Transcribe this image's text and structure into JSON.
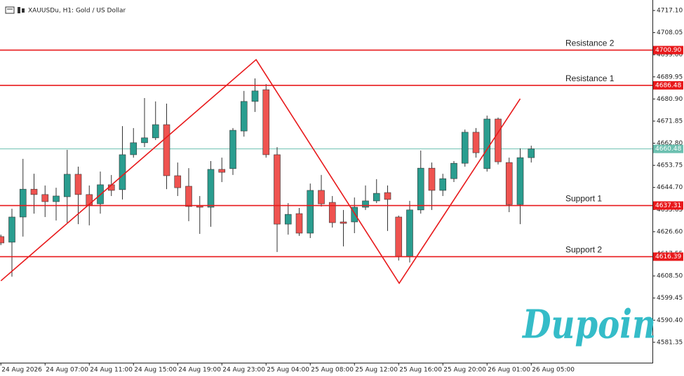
{
  "header": {
    "symbol": "XAUUSDu, H1:  Gold / US Dollar"
  },
  "chart_data": {
    "type": "candlestick",
    "categories": [
      "24 Aug 2026",
      null,
      null,
      null,
      "24 Aug 07:00",
      null,
      null,
      null,
      "24 Aug 11:00",
      null,
      null,
      null,
      "24 Aug 15:00",
      null,
      null,
      null,
      "24 Aug 19:00",
      null,
      null,
      null,
      "24 Aug 23:00",
      null,
      null,
      null,
      "25 Aug 04:00",
      null,
      null,
      null,
      "25 Aug 08:00",
      null,
      null,
      null,
      "25 Aug 12:00",
      null,
      null,
      null,
      "25 Aug 16:00",
      null,
      null,
      null,
      "25 Aug 20:00",
      null,
      null,
      null,
      "26 Aug 01:00",
      null,
      null,
      null,
      "26 Aug 05:00"
    ],
    "open": [
      4624.6,
      4622.3,
      4632.6,
      4644.0,
      4641.8,
      4638.9,
      4640.9,
      4650.1,
      4641.8,
      4638.0,
      4645.8,
      4643.8,
      4658.1,
      4663.0,
      4665.0,
      4670.4,
      4649.5,
      4645.2,
      4637.2,
      4636.6,
      4652.1,
      4652.4,
      4667.8,
      4679.9,
      4684.7,
      4658.1,
      4629.7,
      4634.0,
      4626.0,
      4643.5,
      4638.6,
      4630.6,
      4630.6,
      4636.6,
      4639.2,
      4642.6,
      4632.6,
      4616.5,
      4635.5,
      4652.6,
      4643.5,
      4648.3,
      4654.6,
      4667.3,
      4652.4,
      4672.7,
      4654.9,
      4637.7,
      4656.9
    ],
    "high": [
      4625.4,
      4636.0,
      4656.4,
      4650.3,
      4645.5,
      4644.6,
      4660.1,
      4653.2,
      4645.5,
      4651.2,
      4649.8,
      4669.8,
      4669.0,
      4681.3,
      4679.9,
      4679.0,
      4654.9,
      4652.6,
      4641.2,
      4655.5,
      4656.9,
      4669.0,
      4684.2,
      4689.3,
      4687.0,
      4661.2,
      4638.3,
      4636.3,
      4646.3,
      4649.8,
      4641.2,
      4635.5,
      4640.6,
      4645.5,
      4648.1,
      4645.5,
      4633.2,
      4639.2,
      4659.8,
      4654.9,
      4650.3,
      4655.5,
      4668.4,
      4669.0,
      4674.1,
      4673.3,
      4656.9,
      4660.7,
      4661.8
    ],
    "low": [
      4621.1,
      4608.2,
      4624.6,
      4634.0,
      4632.6,
      4631.2,
      4630.3,
      4629.7,
      4629.2,
      4634.0,
      4641.2,
      4639.8,
      4656.9,
      4661.2,
      4664.1,
      4644.0,
      4641.2,
      4630.9,
      4625.7,
      4628.6,
      4646.9,
      4649.8,
      4665.5,
      4675.6,
      4656.9,
      4618.3,
      4625.4,
      4624.9,
      4624.0,
      4636.9,
      4628.3,
      4620.6,
      4626.0,
      4635.5,
      4638.3,
      4626.9,
      4614.8,
      4614.0,
      4634.0,
      4635.5,
      4641.2,
      4646.9,
      4653.2,
      4656.9,
      4651.2,
      4654.1,
      4634.6,
      4629.7,
      4654.9
    ],
    "close": [
      4622.0,
      4632.6,
      4644.0,
      4641.8,
      4638.9,
      4641.2,
      4650.1,
      4641.8,
      4637.5,
      4645.8,
      4643.5,
      4658.1,
      4663.0,
      4665.0,
      4670.4,
      4649.5,
      4644.6,
      4636.9,
      4636.6,
      4652.1,
      4650.9,
      4668.1,
      4679.9,
      4684.2,
      4658.1,
      4629.7,
      4633.7,
      4626.0,
      4643.5,
      4638.0,
      4630.3,
      4630.0,
      4636.6,
      4639.2,
      4642.3,
      4639.8,
      4616.5,
      4635.5,
      4652.6,
      4643.5,
      4648.3,
      4654.6,
      4667.3,
      4658.9,
      4672.7,
      4655.2,
      4637.7,
      4656.9,
      4660.48
    ],
    "up_color": "#2a9d8f",
    "down_color": "#ef5350",
    "ylim": [
      4573.0,
      4721.4
    ],
    "yticks": [
      {
        "value": 4717.1,
        "label": "4717.10"
      },
      4708.05,
      {
        "value": 4699,
        "label": "4699.00"
      },
      4689.95,
      {
        "value": 4680.9,
        "label": "4680.90"
      },
      4671.85,
      {
        "value": 4662.8,
        "label": "4662.80"
      },
      4653.75,
      {
        "value": 4644.7,
        "label": "4644.70"
      },
      4635.65,
      {
        "value": 4626.6,
        "label": "4626.60"
      },
      4617.55,
      {
        "value": 4608.5,
        "label": "4608.50"
      },
      4599.45,
      {
        "value": 4590.4,
        "label": "4590.40"
      },
      4581.35
    ],
    "levels": [
      {
        "name": "Resistance 2",
        "value": 4700.9,
        "label": "4700.90"
      },
      {
        "name": "Resistance 1",
        "value": 4686.48,
        "label": "4686.48"
      },
      {
        "name": "Support 1",
        "value": 4637.31,
        "label": "4637.31"
      },
      {
        "name": "Support 2",
        "value": 4616.39,
        "label": "4616.39"
      }
    ],
    "level_color": "#e8191b",
    "current_price": {
      "value": 4660.48,
      "label": "4660.48",
      "color": "#6cc0b0"
    },
    "trendline": {
      "color": "#e8191b",
      "x": [
        0,
        23.1,
        36.05,
        47
      ],
      "y": [
        4606.5,
        4697.0,
        4605.5,
        4681.0
      ]
    },
    "watermark": "Dupoin",
    "watermark_color": "#35bcc8"
  }
}
